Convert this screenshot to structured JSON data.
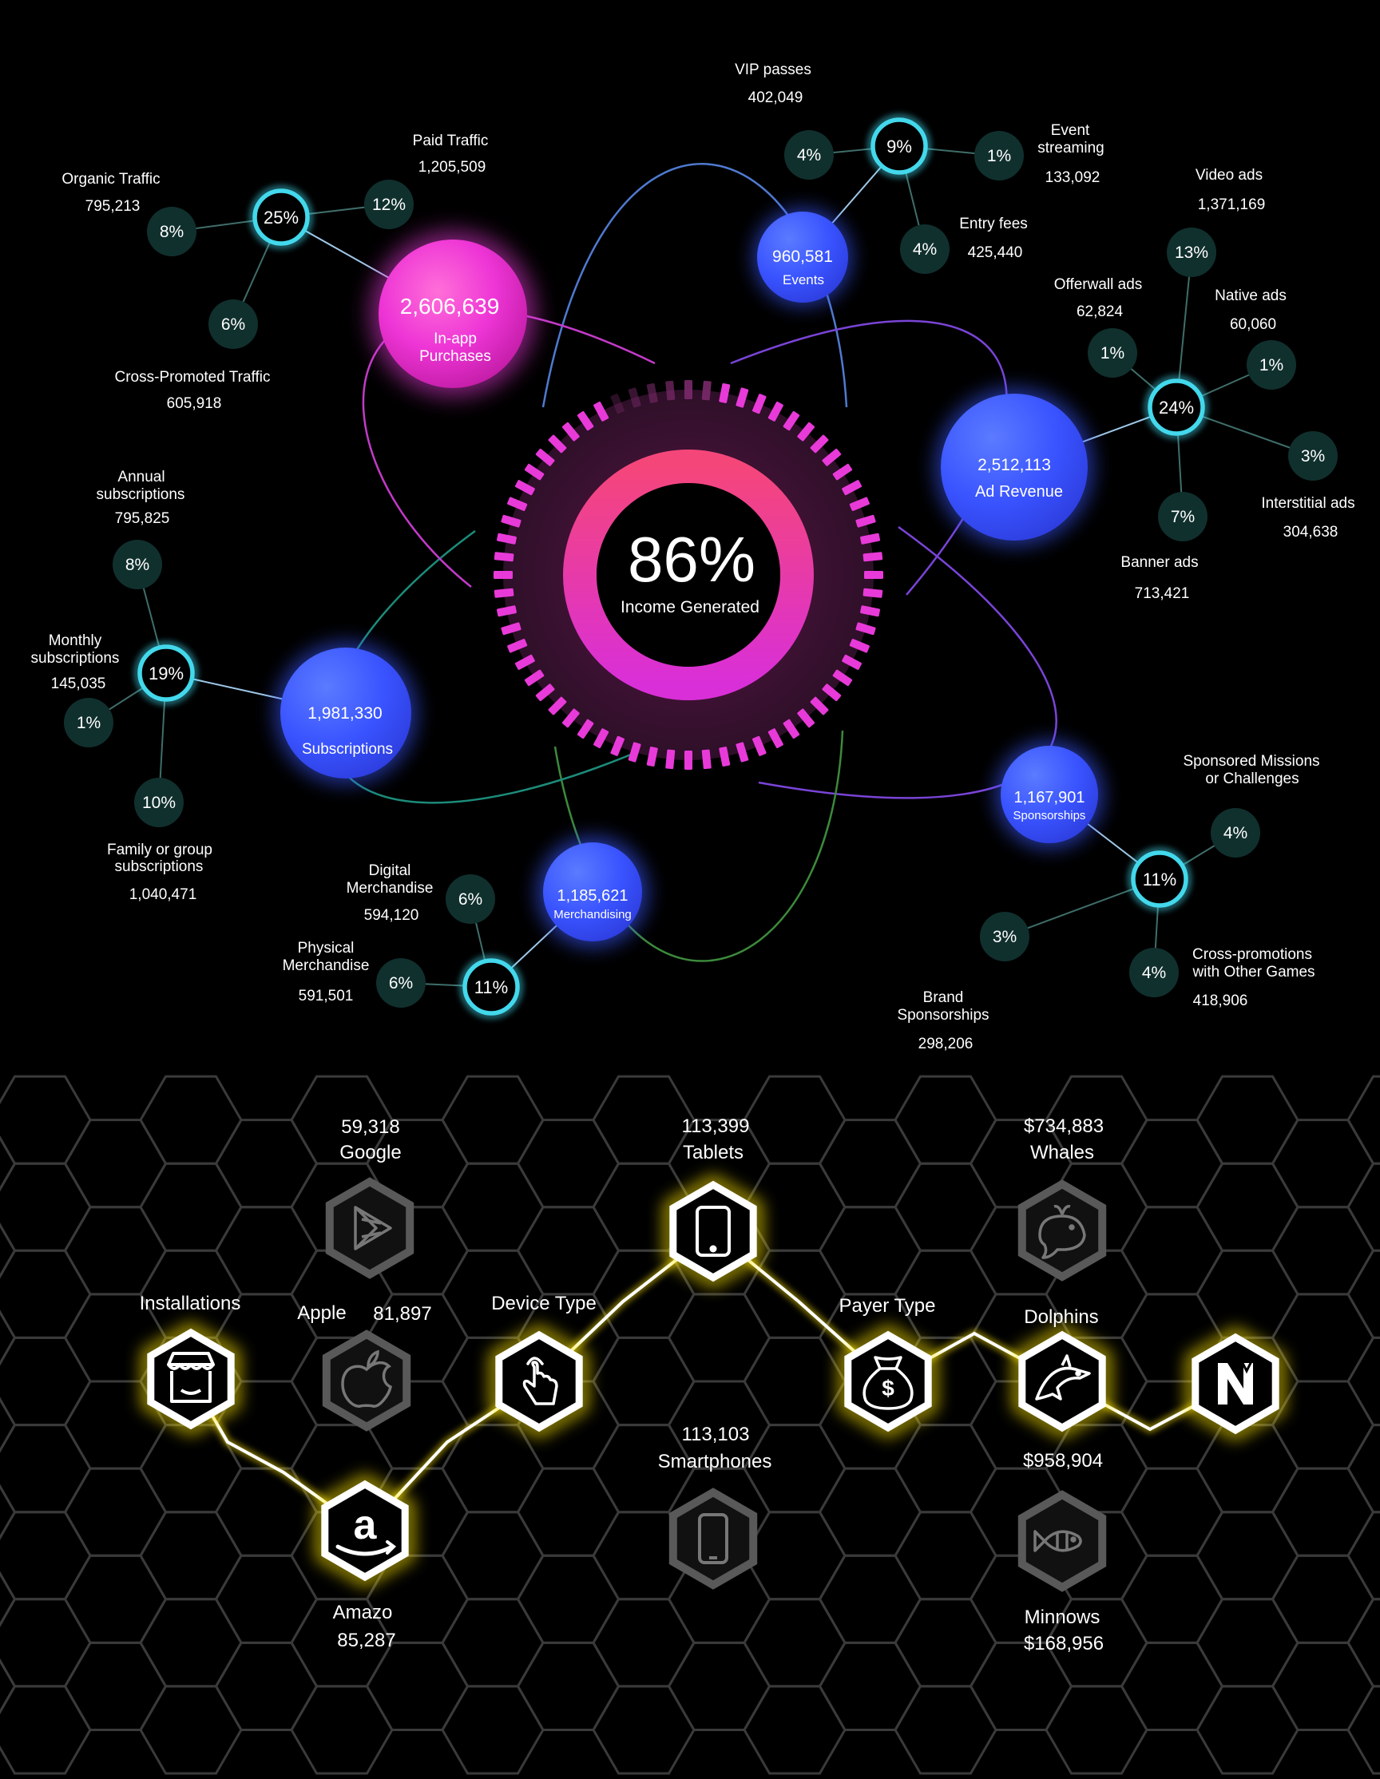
{
  "colors": {
    "background": "#000000",
    "pink": "#e83ad9",
    "blue": "#3a59ff",
    "cyan": "#43d8ec",
    "node_dark": "#10302e",
    "hex_line": "#3a3a3a",
    "hex_gray": "#595959",
    "gold": "#ffe600"
  },
  "center": {
    "percent": "86%",
    "label": "Income Generated"
  },
  "hubs": {
    "in_app": {
      "value": "2,606,639",
      "label_1": "In-app",
      "label_2": "Purchases"
    },
    "events": {
      "value": "960,581",
      "label": "Events"
    },
    "ad_revenue": {
      "value": "2,512,113",
      "label": "Ad Revenue"
    },
    "subscriptions": {
      "value": "1,981,330",
      "label": "Subscriptions"
    },
    "merchandising": {
      "value": "1,185,621",
      "label": "Merchandising"
    },
    "sponsorships": {
      "value": "1,167,901",
      "label": "Sponsorships"
    }
  },
  "rings": {
    "in_app": "25%",
    "events": "9%",
    "ad_revenue": "24%",
    "subscriptions": "19%",
    "merchandising": "11%",
    "sponsorships": "11%"
  },
  "leaves": {
    "organic": {
      "pct": "8%",
      "name": "Organic Traffic",
      "value": "795,213"
    },
    "paid": {
      "pct": "12%",
      "name": "Paid Traffic",
      "value": "1,205,509"
    },
    "cross_promoted": {
      "pct": "6%",
      "name": "Cross-Promoted Traffic",
      "value": "605,918"
    },
    "vip": {
      "pct": "4%",
      "name": "VIP passes",
      "value": "402,049"
    },
    "event_streaming": {
      "pct": "1%",
      "name_1": "Event",
      "name_2": "streaming",
      "value": "133,092"
    },
    "entry_fees": {
      "pct": "4%",
      "name": "Entry fees",
      "value": "425,440"
    },
    "video_ads": {
      "pct": "13%",
      "name": "Video ads",
      "value": "1,371,169"
    },
    "offerwall": {
      "pct": "1%",
      "name": "Offerwall ads",
      "value": "62,824"
    },
    "native": {
      "pct": "1%",
      "name": "Native ads",
      "value": "60,060"
    },
    "interstitial": {
      "pct": "3%",
      "name": "Interstitial ads",
      "value": "304,638"
    },
    "banner": {
      "pct": "7%",
      "name": "Banner ads",
      "value": "713,421"
    },
    "annual": {
      "pct": "8%",
      "name_1": "Annual",
      "name_2": "subscriptions",
      "value": "795,825"
    },
    "monthly": {
      "pct": "1%",
      "name_1": "Monthly",
      "name_2": "subscriptions",
      "value": "145,035"
    },
    "family": {
      "pct": "10%",
      "name_1": "Family or group",
      "name_2": "subscriptions",
      "value": "1,040,471"
    },
    "digital": {
      "pct": "6%",
      "name_1": "Digital",
      "name_2": "Merchandise",
      "value": "594,120"
    },
    "physical": {
      "pct": "6%",
      "name_1": "Physical",
      "name_2": "Merchandise",
      "value": "591,501"
    },
    "sponsored_missions": {
      "pct": "4%",
      "name_1": "Sponsored Missions",
      "name_2": "or Challenges"
    },
    "brand": {
      "pct": "3%",
      "name_1": "Brand",
      "name_2": "Sponsorships",
      "value": "298,206"
    },
    "cross_promotions": {
      "pct": "4%",
      "name_1": "Cross-promotions",
      "name_2": "with Other Games",
      "value": "418,906"
    }
  },
  "honeycomb": {
    "google": {
      "value": "59,318",
      "label": "Google",
      "icon": "play-store-icon"
    },
    "apple": {
      "label": "Apple",
      "value": "81,897",
      "icon": "apple-icon"
    },
    "amazon": {
      "label": "Amazo",
      "value": "85,287",
      "icon": "amazon-icon"
    },
    "installations": {
      "label": "Installations",
      "icon": "store-icon"
    },
    "device_type": {
      "label": "Device Type",
      "icon": "touch-icon"
    },
    "tablets": {
      "value": "113,399",
      "label": "Tablets",
      "icon": "tablet-icon"
    },
    "smartphones": {
      "value": "113,103",
      "label": "Smartphones",
      "icon": "smartphone-icon"
    },
    "payer_type": {
      "label": "Payer Type",
      "icon": "money-bag-icon"
    },
    "whales": {
      "value": "$734,883",
      "label": "Whales",
      "icon": "whale-icon"
    },
    "dolphins": {
      "label": "Dolphins",
      "value": "$958,904",
      "icon": "dolphin-icon"
    },
    "minnows": {
      "label": "Minnows",
      "value": "$168,956",
      "icon": "fish-icon"
    },
    "brand_logo": {
      "icon": "brand-logo-icon"
    }
  }
}
